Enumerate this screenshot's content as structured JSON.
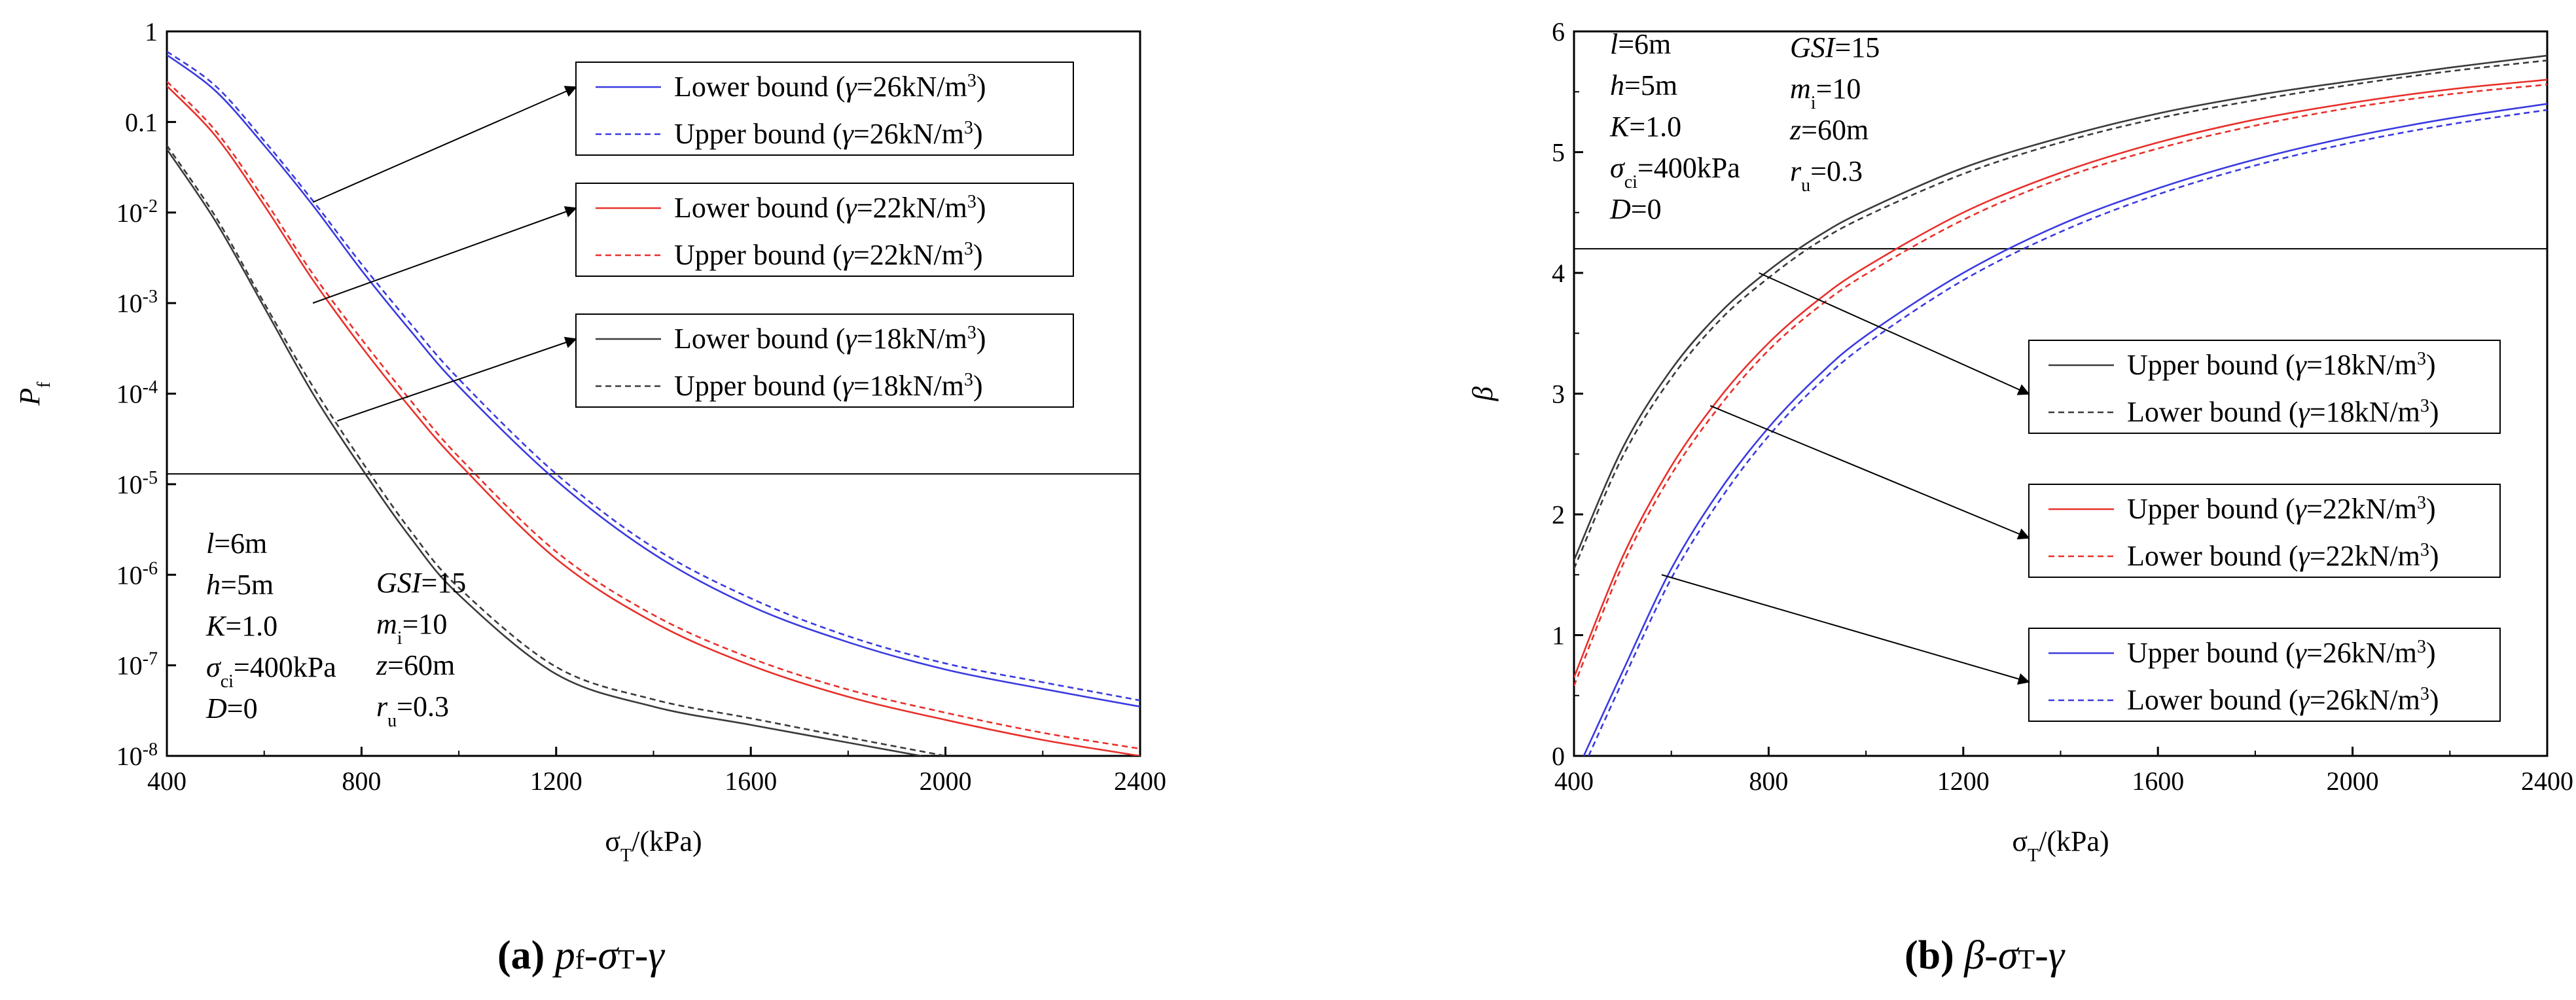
{
  "colors": {
    "black": "#3a3a3a",
    "red": "#e8302a",
    "blue": "#3a3ae0",
    "axis": "#000000"
  },
  "chart_data": [
    {
      "type": "line",
      "id": "a",
      "caption": {
        "letter": "(a)",
        "text": "pf-σT-γ"
      },
      "xlabel": "σT/(kPa)",
      "ylabel": "Pf",
      "xlim": [
        400,
        2400
      ],
      "ylim": [
        1e-08,
        1
      ],
      "yscale": "log",
      "x_ticks": [
        "400",
        "800",
        "1200",
        "1600",
        "2000",
        "2400"
      ],
      "y_ticks": [
        "1",
        "0.1",
        "10-2",
        "10-3",
        "10-4",
        "10-5",
        "10-6",
        "10-7",
        "10-8"
      ],
      "reference_line": {
        "y": 1.3e-05
      },
      "params_left": [
        "l=6m",
        "h=5m",
        "K=1.0",
        "σci=400kPa",
        "D=0"
      ],
      "params_right": [
        "GSI=15",
        "mi=10",
        "z=60m",
        "ru=0.3"
      ],
      "series": [
        {
          "name": "Lower bound (γ=26kN/m3)",
          "color": "blue",
          "dash": false,
          "x": [
            400,
            500,
            600,
            700,
            800,
            900,
            1000,
            1200,
            1400,
            1600,
            1800,
            2000,
            2200,
            2400
          ],
          "y": [
            0.55,
            0.22,
            0.055,
            0.012,
            0.0023,
            0.0005,
            0.00012,
            1.1e-05,
            1.7e-06,
            4.5e-07,
            1.8e-07,
            9e-08,
            5.5e-08,
            3.5e-08
          ]
        },
        {
          "name": "Upper bound (γ=26kN/m3)",
          "color": "blue",
          "dash": true,
          "x": [
            400,
            500,
            600,
            700,
            800,
            900,
            1000,
            1200,
            1400,
            1600,
            1800,
            2000,
            2200,
            2400
          ],
          "y": [
            0.6,
            0.25,
            0.062,
            0.0135,
            0.0027,
            0.0006,
            0.000145,
            1.3e-05,
            2e-06,
            5.5e-07,
            2.1e-07,
            1.05e-07,
            6.5e-08,
            4.1e-08
          ]
        },
        {
          "name": "Lower bound (γ=22kN/m3)",
          "color": "red",
          "dash": false,
          "x": [
            400,
            500,
            600,
            700,
            800,
            900,
            1000,
            1200,
            1400,
            1600,
            1800,
            2000,
            2200,
            2400
          ],
          "y": [
            0.25,
            0.07,
            0.012,
            0.0018,
            0.00033,
            7e-05,
            1.7e-05,
            1.5e-06,
            3e-07,
            1e-07,
            4.5e-08,
            2.5e-08,
            1.5e-08,
            1e-08
          ]
        },
        {
          "name": "Upper bound (γ=22kN/m3)",
          "color": "red",
          "dash": true,
          "x": [
            400,
            500,
            600,
            700,
            800,
            900,
            1000,
            1200,
            1400,
            1600,
            1800,
            2000,
            2200,
            2400
          ],
          "y": [
            0.28,
            0.08,
            0.014,
            0.0021,
            0.0004,
            8.5e-05,
            2e-05,
            1.8e-06,
            3.6e-07,
            1.2e-07,
            5.4e-08,
            3e-08,
            1.8e-08,
            1.2e-08
          ]
        },
        {
          "name": "Lower bound (γ=18kN/m3)",
          "color": "black",
          "dash": false,
          "x": [
            400,
            500,
            600,
            700,
            800,
            900,
            1000,
            1200,
            1400,
            1600,
            1800,
            1950
          ],
          "y": [
            0.05,
            0.008,
            0.0009,
            0.0001,
            1.5e-05,
            2.6e-06,
            6e-07,
            8e-08,
            3.5e-08,
            2.2e-08,
            1.4e-08,
            1e-08
          ]
        },
        {
          "name": "Upper bound (γ=18kN/m3)",
          "color": "black",
          "dash": true,
          "x": [
            400,
            500,
            600,
            700,
            800,
            900,
            1000,
            1200,
            1400,
            1600,
            1800,
            2000
          ],
          "y": [
            0.055,
            0.009,
            0.001,
            0.00012,
            1.8e-05,
            3.1e-06,
            7.2e-07,
            9.6e-08,
            4.2e-08,
            2.6e-08,
            1.6e-08,
            1e-08
          ]
        }
      ],
      "legend": [
        {
          "group": "γ=26",
          "items": [
            "Lower bound (γ=26kN/m3)",
            "Upper bound (γ=26kN/m3)"
          ],
          "arrow_from_x": 700,
          "arrow_from_y": 0.013
        },
        {
          "group": "γ=22",
          "items": [
            "Lower bound (γ=22kN/m3)",
            "Upper bound (γ=22kN/m3)"
          ],
          "arrow_from_x": 700,
          "arrow_from_y": 0.001
        },
        {
          "group": "γ=18",
          "items": [
            "Lower bound (γ=18kN/m3)",
            "Upper bound (γ=18kN/m3)"
          ],
          "arrow_from_x": 750,
          "arrow_from_y": 5e-05
        }
      ]
    },
    {
      "type": "line",
      "id": "b",
      "caption": {
        "letter": "(b)",
        "text": "β-σT-γ"
      },
      "xlabel": "σT/(kPa)",
      "ylabel": "β",
      "xlim": [
        400,
        2400
      ],
      "ylim": [
        0,
        6
      ],
      "yscale": "linear",
      "x_ticks": [
        "400",
        "800",
        "1200",
        "1600",
        "2000",
        "2400"
      ],
      "y_ticks": [
        "0",
        "1",
        "2",
        "3",
        "4",
        "5",
        "6"
      ],
      "reference_line": {
        "y": 4.2
      },
      "params_left": [
        "l=6m",
        "h=5m",
        "K=1.0",
        "σci=400kPa",
        "D=0"
      ],
      "params_right": [
        "GSI=15",
        "mi=10",
        "z=60m",
        "ru=0.3"
      ],
      "series": [
        {
          "name": "Upper bound (γ=18kN/m3)",
          "color": "black",
          "dash": false,
          "x": [
            400,
            500,
            600,
            700,
            800,
            900,
            1000,
            1200,
            1400,
            1600,
            1800,
            2000,
            2200,
            2400
          ],
          "y": [
            1.62,
            2.55,
            3.2,
            3.67,
            4.02,
            4.3,
            4.52,
            4.87,
            5.12,
            5.32,
            5.47,
            5.59,
            5.7,
            5.8
          ]
        },
        {
          "name": "Lower bound (γ=18kN/m3)",
          "color": "black",
          "dash": true,
          "x": [
            400,
            500,
            600,
            700,
            800,
            900,
            1000,
            1200,
            1400,
            1600,
            1800,
            2000,
            2200,
            2400
          ],
          "y": [
            1.55,
            2.48,
            3.13,
            3.61,
            3.96,
            4.25,
            4.47,
            4.82,
            5.08,
            5.28,
            5.43,
            5.56,
            5.67,
            5.76
          ]
        },
        {
          "name": "Upper bound (γ=22kN/m3)",
          "color": "red",
          "dash": false,
          "x": [
            400,
            500,
            600,
            700,
            800,
            900,
            1000,
            1200,
            1400,
            1600,
            1800,
            2000,
            2200,
            2400
          ],
          "y": [
            0.65,
            1.65,
            2.4,
            2.97,
            3.42,
            3.77,
            4.05,
            4.5,
            4.83,
            5.08,
            5.27,
            5.41,
            5.52,
            5.6
          ]
        },
        {
          "name": "Lower bound (γ=22kN/m3)",
          "color": "red",
          "dash": true,
          "x": [
            400,
            500,
            600,
            700,
            800,
            900,
            1000,
            1200,
            1400,
            1600,
            1800,
            2000,
            2200,
            2400
          ],
          "y": [
            0.58,
            1.58,
            2.33,
            2.9,
            3.36,
            3.71,
            3.99,
            4.44,
            4.78,
            5.03,
            5.22,
            5.37,
            5.48,
            5.56
          ]
        },
        {
          "name": "Upper bound (γ=26kN/m3)",
          "color": "blue",
          "dash": false,
          "x": [
            420,
            500,
            600,
            700,
            800,
            900,
            1000,
            1200,
            1400,
            1600,
            1800,
            2000,
            2200,
            2400
          ],
          "y": [
            0,
            0.7,
            1.55,
            2.2,
            2.72,
            3.14,
            3.48,
            4.0,
            4.4,
            4.7,
            4.94,
            5.13,
            5.28,
            5.4
          ]
        },
        {
          "name": "Lower bound (γ=26kN/m3)",
          "color": "blue",
          "dash": true,
          "x": [
            430,
            500,
            600,
            700,
            800,
            900,
            1000,
            1200,
            1400,
            1600,
            1800,
            2000,
            2200,
            2400
          ],
          "y": [
            0,
            0.62,
            1.47,
            2.12,
            2.65,
            3.07,
            3.41,
            3.94,
            4.34,
            4.65,
            4.89,
            5.08,
            5.23,
            5.35
          ]
        }
      ],
      "legend": [
        {
          "group": "γ=18",
          "items": [
            "Upper bound (γ=18kN/m3)",
            "Lower bound (γ=18kN/m3)"
          ],
          "arrow_from_x": 780,
          "arrow_from_y": 4.0
        },
        {
          "group": "γ=22",
          "items": [
            "Upper bound (γ=22kN/m3)",
            "Lower bound (γ=22kN/m3)"
          ],
          "arrow_from_x": 680,
          "arrow_from_y": 2.9
        },
        {
          "group": "γ=26",
          "items": [
            "Upper bound (γ=26kN/m3)",
            "Lower bound (γ=26kN/m3)"
          ],
          "arrow_from_x": 580,
          "arrow_from_y": 1.5
        }
      ]
    }
  ]
}
